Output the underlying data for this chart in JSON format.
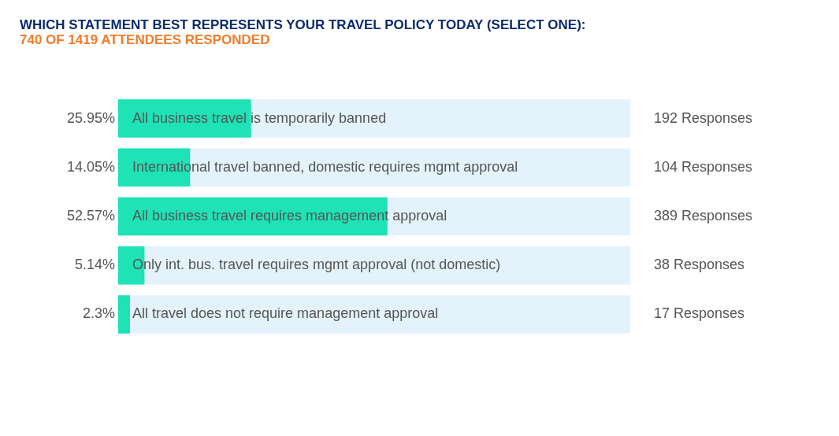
{
  "chart_data": {
    "type": "bar",
    "orientation": "horizontal",
    "title": "WHICH STATEMENT BEST REPRESENTS YOUR TRAVEL POLICY TODAY (SELECT ONE):",
    "subtitle": "740  OF 1419 ATTENDEES RESPONDED",
    "categories": [
      "All business travel is temporarily banned",
      "International travel banned, domestic requires mgmt approval",
      "All business travel requires management approval",
      "Only int. bus. travel requires mgmt approval (not domestic)",
      "All travel does not require management approval"
    ],
    "values": [
      25.95,
      14.05,
      52.57,
      5.14,
      2.3
    ],
    "value_labels": [
      "25.95%",
      "14.05%",
      "52.57%",
      "5.14%",
      "2.3%"
    ],
    "color": "#1de3b6",
    "xlim": [
      0,
      100
    ],
    "annotations": [
      "192 Responses",
      "104 Responses",
      "389 Responses",
      "38 Responses",
      "17 Responses"
    ]
  }
}
